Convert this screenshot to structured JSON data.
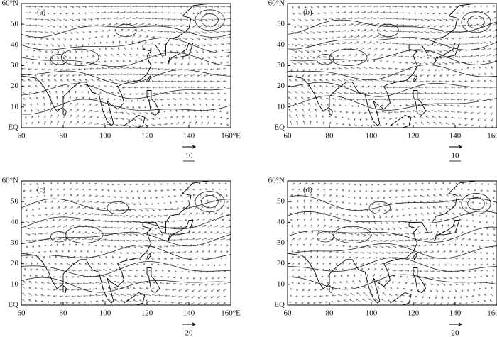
{
  "panels": [
    {
      "label": "(a)",
      "reference_vector": "10"
    },
    {
      "label": "(b)",
      "reference_vector": "10"
    },
    {
      "label": "(c)",
      "reference_vector": "20"
    },
    {
      "label": "(d)",
      "reference_vector": "20"
    }
  ],
  "x_ticks": [
    "60",
    "80",
    "100",
    "120",
    "140",
    "160°E"
  ],
  "y_ticks": [
    "EQ",
    "10",
    "20",
    "30",
    "40",
    "50",
    "60°N"
  ]
}
